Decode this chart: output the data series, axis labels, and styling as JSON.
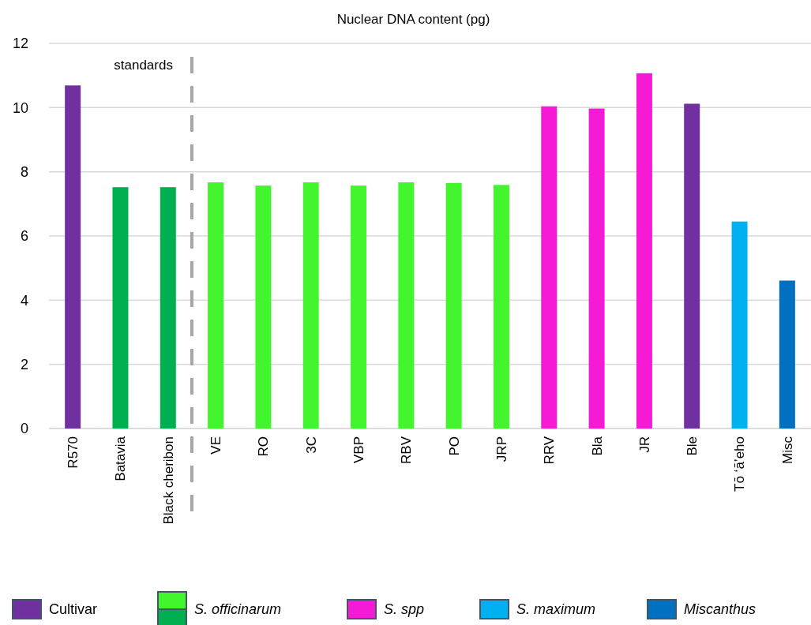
{
  "chart_data": {
    "type": "bar",
    "title": "Nuclear DNA content (pg)",
    "categories": [
      "R570",
      "Batavia",
      "Black cheribon",
      "VE",
      "RO",
      "3C",
      "VBP",
      "RBV",
      "PO",
      "JRP",
      "RRV",
      "Bla",
      "JR",
      "Ble",
      "Tō ‘ā’eho",
      "Misc"
    ],
    "series": [
      {
        "name": "Cultivar",
        "color": "#7030a0",
        "values": [
          10.69,
          null,
          null,
          null,
          null,
          null,
          null,
          null,
          null,
          null,
          null,
          null,
          null,
          10.12,
          null,
          null
        ]
      },
      {
        "name": "S. officinarum",
        "colors": [
          "#43f52d",
          "#00b050",
          "#00b050",
          "#43f52d",
          "#43f52d",
          "#43f52d",
          "#43f52d",
          "#43f52d",
          "#43f52d",
          "#43f52d",
          "#43f52d",
          "#43f52d",
          "#43f52d",
          "#43f52d",
          "#43f52d",
          "#43f52d"
        ],
        "values": [
          null,
          7.52,
          7.52,
          7.67,
          7.57,
          7.67,
          7.57,
          7.67,
          7.65,
          7.59,
          null,
          null,
          null,
          null,
          null,
          null
        ]
      },
      {
        "name": "S. spp",
        "color": "#f41ad6",
        "values": [
          null,
          null,
          null,
          null,
          null,
          null,
          null,
          null,
          null,
          null,
          10.04,
          9.97,
          11.07,
          null,
          null,
          null
        ]
      },
      {
        "name": "S. maximum",
        "color": "#00b0f0",
        "values": [
          null,
          null,
          null,
          null,
          null,
          null,
          null,
          null,
          null,
          null,
          null,
          null,
          null,
          null,
          6.45,
          null
        ]
      },
      {
        "name": "Miscanthus",
        "color": "#0070c0",
        "values": [
          null,
          null,
          null,
          null,
          null,
          null,
          null,
          null,
          null,
          null,
          null,
          null,
          null,
          null,
          null,
          4.61
        ]
      }
    ],
    "ylim": [
      0,
      12
    ],
    "yticks": [
      0,
      2,
      4,
      6,
      8,
      10,
      12
    ],
    "grid": "y",
    "legend": "bottom",
    "annotations": [
      "standards"
    ]
  }
}
